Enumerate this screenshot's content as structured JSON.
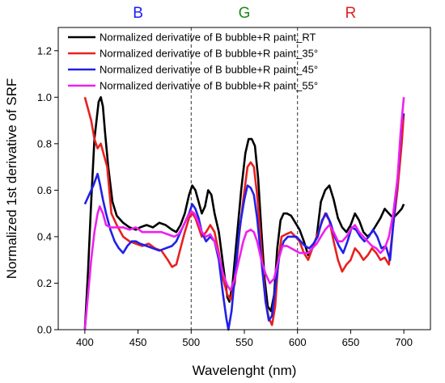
{
  "chart_data": {
    "type": "line",
    "title": "",
    "xlabel": "Wavelenght (nm)",
    "ylabel": "Normalized 1st derivative of SRF",
    "xlim": [
      375,
      725
    ],
    "ylim": [
      0,
      1.3
    ],
    "xticks": [
      400,
      450,
      500,
      550,
      600,
      650,
      700
    ],
    "yticks": [
      0.0,
      0.2,
      0.4,
      0.6,
      0.8,
      1.0,
      1.2
    ],
    "xtick_labels": [
      "400",
      "450",
      "500",
      "550",
      "600",
      "650",
      "700"
    ],
    "ytick_labels": [
      "0.0",
      "0.2",
      "0.4",
      "0.6",
      "0.8",
      "1.0",
      "1.2"
    ],
    "grid": false,
    "legend_position": "top-left",
    "vlines": [
      500,
      600
    ],
    "regions": [
      {
        "label": "B",
        "x": 450,
        "color": "#1a1aff"
      },
      {
        "label": "G",
        "x": 550,
        "color": "#1a8a1a"
      },
      {
        "label": "R",
        "x": 650,
        "color": "#e02020"
      }
    ],
    "series": [
      {
        "name": "Normalized derivative of B bubble+R paint_RT",
        "color": "#000000",
        "points": [
          [
            400,
            0.0
          ],
          [
            403,
            0.25
          ],
          [
            406,
            0.55
          ],
          [
            409,
            0.82
          ],
          [
            411,
            0.9
          ],
          [
            413,
            0.98
          ],
          [
            415,
            1.0
          ],
          [
            417,
            0.96
          ],
          [
            419,
            0.85
          ],
          [
            422,
            0.7
          ],
          [
            426,
            0.55
          ],
          [
            430,
            0.49
          ],
          [
            436,
            0.46
          ],
          [
            442,
            0.44
          ],
          [
            448,
            0.43
          ],
          [
            452,
            0.44
          ],
          [
            458,
            0.45
          ],
          [
            464,
            0.44
          ],
          [
            470,
            0.46
          ],
          [
            476,
            0.45
          ],
          [
            482,
            0.43
          ],
          [
            486,
            0.42
          ],
          [
            490,
            0.45
          ],
          [
            494,
            0.5
          ],
          [
            498,
            0.58
          ],
          [
            501,
            0.62
          ],
          [
            504,
            0.6
          ],
          [
            507,
            0.55
          ],
          [
            510,
            0.5
          ],
          [
            513,
            0.53
          ],
          [
            516,
            0.6
          ],
          [
            519,
            0.58
          ],
          [
            522,
            0.5
          ],
          [
            526,
            0.42
          ],
          [
            530,
            0.28
          ],
          [
            534,
            0.14
          ],
          [
            536,
            0.12
          ],
          [
            539,
            0.2
          ],
          [
            543,
            0.4
          ],
          [
            547,
            0.6
          ],
          [
            551,
            0.76
          ],
          [
            554,
            0.82
          ],
          [
            557,
            0.82
          ],
          [
            560,
            0.79
          ],
          [
            563,
            0.65
          ],
          [
            566,
            0.43
          ],
          [
            569,
            0.22
          ],
          [
            572,
            0.1
          ],
          [
            575,
            0.08
          ],
          [
            578,
            0.15
          ],
          [
            581,
            0.35
          ],
          [
            584,
            0.47
          ],
          [
            587,
            0.5
          ],
          [
            590,
            0.5
          ],
          [
            594,
            0.49
          ],
          [
            598,
            0.46
          ],
          [
            602,
            0.43
          ],
          [
            606,
            0.38
          ],
          [
            610,
            0.32
          ],
          [
            614,
            0.35
          ],
          [
            618,
            0.4
          ],
          [
            622,
            0.55
          ],
          [
            626,
            0.6
          ],
          [
            630,
            0.62
          ],
          [
            634,
            0.56
          ],
          [
            638,
            0.48
          ],
          [
            642,
            0.44
          ],
          [
            646,
            0.42
          ],
          [
            650,
            0.45
          ],
          [
            654,
            0.5
          ],
          [
            658,
            0.47
          ],
          [
            662,
            0.42
          ],
          [
            666,
            0.4
          ],
          [
            670,
            0.42
          ],
          [
            674,
            0.45
          ],
          [
            678,
            0.48
          ],
          [
            682,
            0.52
          ],
          [
            686,
            0.5
          ],
          [
            690,
            0.48
          ],
          [
            694,
            0.5
          ],
          [
            698,
            0.52
          ],
          [
            700,
            0.54
          ]
        ]
      },
      {
        "name": "Normalized derivative of B bubble+R paint_35°",
        "color": "#e82020",
        "points": [
          [
            400,
            1.0
          ],
          [
            403,
            0.95
          ],
          [
            406,
            0.9
          ],
          [
            409,
            0.82
          ],
          [
            412,
            0.78
          ],
          [
            415,
            0.8
          ],
          [
            418,
            0.75
          ],
          [
            421,
            0.7
          ],
          [
            425,
            0.5
          ],
          [
            430,
            0.45
          ],
          [
            436,
            0.4
          ],
          [
            442,
            0.38
          ],
          [
            448,
            0.37
          ],
          [
            454,
            0.36
          ],
          [
            460,
            0.37
          ],
          [
            466,
            0.35
          ],
          [
            472,
            0.34
          ],
          [
            478,
            0.3
          ],
          [
            482,
            0.27
          ],
          [
            486,
            0.28
          ],
          [
            490,
            0.35
          ],
          [
            494,
            0.42
          ],
          [
            498,
            0.48
          ],
          [
            501,
            0.5
          ],
          [
            504,
            0.48
          ],
          [
            507,
            0.44
          ],
          [
            510,
            0.4
          ],
          [
            514,
            0.42
          ],
          [
            518,
            0.45
          ],
          [
            522,
            0.42
          ],
          [
            526,
            0.33
          ],
          [
            530,
            0.22
          ],
          [
            534,
            0.15
          ],
          [
            537,
            0.13
          ],
          [
            541,
            0.2
          ],
          [
            545,
            0.4
          ],
          [
            549,
            0.56
          ],
          [
            553,
            0.7
          ],
          [
            556,
            0.72
          ],
          [
            559,
            0.7
          ],
          [
            562,
            0.58
          ],
          [
            566,
            0.35
          ],
          [
            570,
            0.12
          ],
          [
            573,
            0.05
          ],
          [
            576,
            0.02
          ],
          [
            579,
            0.1
          ],
          [
            582,
            0.3
          ],
          [
            585,
            0.4
          ],
          [
            589,
            0.41
          ],
          [
            594,
            0.42
          ],
          [
            598,
            0.4
          ],
          [
            602,
            0.38
          ],
          [
            606,
            0.33
          ],
          [
            610,
            0.3
          ],
          [
            614,
            0.35
          ],
          [
            618,
            0.4
          ],
          [
            622,
            0.45
          ],
          [
            626,
            0.5
          ],
          [
            630,
            0.47
          ],
          [
            634,
            0.38
          ],
          [
            638,
            0.3
          ],
          [
            642,
            0.25
          ],
          [
            646,
            0.28
          ],
          [
            650,
            0.3
          ],
          [
            654,
            0.35
          ],
          [
            658,
            0.33
          ],
          [
            662,
            0.3
          ],
          [
            666,
            0.32
          ],
          [
            670,
            0.35
          ],
          [
            674,
            0.33
          ],
          [
            678,
            0.3
          ],
          [
            682,
            0.31
          ],
          [
            686,
            0.28
          ],
          [
            690,
            0.45
          ],
          [
            694,
            0.6
          ],
          [
            698,
            0.8
          ],
          [
            700,
            0.93
          ]
        ]
      },
      {
        "name": "Normalized derivative of B bubble+R paint_45°",
        "color": "#2020e8",
        "points": [
          [
            400,
            0.54
          ],
          [
            404,
            0.58
          ],
          [
            408,
            0.62
          ],
          [
            412,
            0.67
          ],
          [
            414,
            0.63
          ],
          [
            417,
            0.56
          ],
          [
            420,
            0.5
          ],
          [
            424,
            0.43
          ],
          [
            428,
            0.38
          ],
          [
            432,
            0.35
          ],
          [
            436,
            0.33
          ],
          [
            440,
            0.36
          ],
          [
            444,
            0.38
          ],
          [
            448,
            0.38
          ],
          [
            452,
            0.37
          ],
          [
            458,
            0.36
          ],
          [
            464,
            0.35
          ],
          [
            470,
            0.34
          ],
          [
            476,
            0.35
          ],
          [
            482,
            0.36
          ],
          [
            486,
            0.38
          ],
          [
            490,
            0.42
          ],
          [
            494,
            0.46
          ],
          [
            498,
            0.5
          ],
          [
            501,
            0.54
          ],
          [
            504,
            0.52
          ],
          [
            507,
            0.48
          ],
          [
            510,
            0.42
          ],
          [
            514,
            0.38
          ],
          [
            518,
            0.4
          ],
          [
            522,
            0.38
          ],
          [
            526,
            0.3
          ],
          [
            530,
            0.15
          ],
          [
            533,
            0.05
          ],
          [
            535,
            0.0
          ],
          [
            538,
            0.08
          ],
          [
            542,
            0.28
          ],
          [
            546,
            0.45
          ],
          [
            550,
            0.56
          ],
          [
            553,
            0.62
          ],
          [
            556,
            0.61
          ],
          [
            559,
            0.58
          ],
          [
            562,
            0.48
          ],
          [
            566,
            0.3
          ],
          [
            570,
            0.12
          ],
          [
            573,
            0.04
          ],
          [
            576,
            0.06
          ],
          [
            579,
            0.18
          ],
          [
            583,
            0.32
          ],
          [
            587,
            0.38
          ],
          [
            591,
            0.4
          ],
          [
            595,
            0.4
          ],
          [
            599,
            0.4
          ],
          [
            603,
            0.38
          ],
          [
            607,
            0.36
          ],
          [
            611,
            0.35
          ],
          [
            615,
            0.37
          ],
          [
            619,
            0.4
          ],
          [
            623,
            0.47
          ],
          [
            627,
            0.5
          ],
          [
            631,
            0.46
          ],
          [
            635,
            0.4
          ],
          [
            639,
            0.36
          ],
          [
            643,
            0.33
          ],
          [
            647,
            0.38
          ],
          [
            651,
            0.44
          ],
          [
            655,
            0.43
          ],
          [
            659,
            0.4
          ],
          [
            663,
            0.38
          ],
          [
            667,
            0.4
          ],
          [
            671,
            0.43
          ],
          [
            675,
            0.4
          ],
          [
            679,
            0.35
          ],
          [
            683,
            0.36
          ],
          [
            687,
            0.3
          ],
          [
            691,
            0.5
          ],
          [
            695,
            0.7
          ],
          [
            698,
            0.9
          ],
          [
            700,
            0.93
          ]
        ]
      },
      {
        "name": "Normalized derivative of B bubble+R paint_55°",
        "color": "#ee20ee",
        "points": [
          [
            400,
            0.0
          ],
          [
            403,
            0.15
          ],
          [
            406,
            0.3
          ],
          [
            409,
            0.42
          ],
          [
            412,
            0.5
          ],
          [
            414,
            0.53
          ],
          [
            417,
            0.5
          ],
          [
            420,
            0.45
          ],
          [
            424,
            0.44
          ],
          [
            430,
            0.44
          ],
          [
            436,
            0.44
          ],
          [
            442,
            0.43
          ],
          [
            448,
            0.44
          ],
          [
            454,
            0.42
          ],
          [
            460,
            0.42
          ],
          [
            466,
            0.42
          ],
          [
            472,
            0.42
          ],
          [
            478,
            0.41
          ],
          [
            484,
            0.4
          ],
          [
            488,
            0.41
          ],
          [
            492,
            0.44
          ],
          [
            496,
            0.48
          ],
          [
            500,
            0.51
          ],
          [
            503,
            0.5
          ],
          [
            506,
            0.47
          ],
          [
            510,
            0.42
          ],
          [
            514,
            0.4
          ],
          [
            518,
            0.41
          ],
          [
            522,
            0.38
          ],
          [
            526,
            0.32
          ],
          [
            530,
            0.24
          ],
          [
            534,
            0.19
          ],
          [
            537,
            0.17
          ],
          [
            541,
            0.22
          ],
          [
            545,
            0.3
          ],
          [
            549,
            0.38
          ],
          [
            552,
            0.42
          ],
          [
            556,
            0.43
          ],
          [
            559,
            0.42
          ],
          [
            562,
            0.38
          ],
          [
            566,
            0.3
          ],
          [
            570,
            0.24
          ],
          [
            574,
            0.2
          ],
          [
            578,
            0.22
          ],
          [
            582,
            0.3
          ],
          [
            586,
            0.36
          ],
          [
            590,
            0.36
          ],
          [
            594,
            0.35
          ],
          [
            598,
            0.34
          ],
          [
            602,
            0.33
          ],
          [
            606,
            0.33
          ],
          [
            610,
            0.33
          ],
          [
            614,
            0.35
          ],
          [
            618,
            0.37
          ],
          [
            622,
            0.4
          ],
          [
            626,
            0.43
          ],
          [
            630,
            0.45
          ],
          [
            634,
            0.42
          ],
          [
            638,
            0.38
          ],
          [
            642,
            0.38
          ],
          [
            646,
            0.4
          ],
          [
            650,
            0.43
          ],
          [
            654,
            0.45
          ],
          [
            658,
            0.42
          ],
          [
            662,
            0.4
          ],
          [
            666,
            0.38
          ],
          [
            670,
            0.36
          ],
          [
            674,
            0.35
          ],
          [
            678,
            0.33
          ],
          [
            682,
            0.35
          ],
          [
            686,
            0.4
          ],
          [
            690,
            0.5
          ],
          [
            694,
            0.65
          ],
          [
            697,
            0.85
          ],
          [
            700,
            1.0
          ]
        ]
      }
    ]
  }
}
